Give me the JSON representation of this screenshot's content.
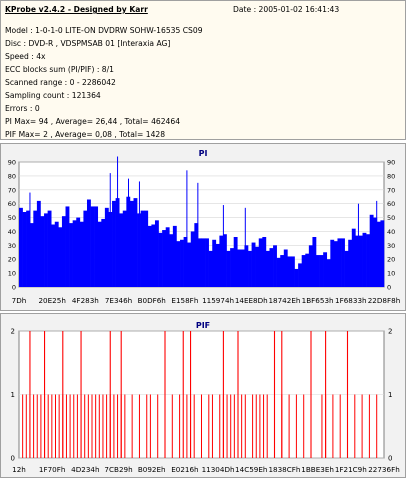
{
  "header": {
    "title": "KProbe v2.4.2 - Designed by Karr",
    "date": "Date : 2005-01-02 16:41:43",
    "lines": [
      "Model : 1-0-1-0 LITE-ON DVDRW SOHW-16535 CS09",
      "Disc : DVD-R , VDSPMSAB 01 [Interaxia AG]",
      "Speed : 4x",
      "ECC blocks sum (PI/PIF) : 8/1",
      "Scanned range : 0 - 2286042",
      "Sampling count : 121364",
      "Errors : 0",
      "PI Max= 94 , Average= 26,44 , Total= 462464",
      "PIF Max= 2 , Average= 0,08 , Total= 1428"
    ]
  },
  "chart_data": [
    {
      "type": "area",
      "title": "PI",
      "color": "#0000ff",
      "ylim": [
        0,
        90
      ],
      "yticks": [
        0,
        10,
        20,
        30,
        40,
        50,
        60,
        70,
        80,
        90
      ],
      "xticklabels": [
        "7Dh",
        "20E25h",
        "4F283h",
        "7E346h",
        "B0DF6h",
        "E158Fh",
        "115974h",
        "14EE8Dh",
        "18742Eh",
        "1BF653h",
        "1F6833h",
        "22D8F8h"
      ],
      "series": [
        {
          "values": [
            62,
            55,
            52,
            50,
            55,
            58,
            54,
            52,
            50,
            47,
            45,
            48,
            52,
            55,
            50,
            48,
            46,
            50,
            54,
            58,
            60,
            56,
            52,
            50,
            54,
            58,
            62,
            60,
            56,
            54,
            60,
            64,
            62,
            58,
            56,
            52,
            48,
            45,
            44,
            42,
            40,
            38,
            40,
            42,
            38,
            35,
            33,
            36,
            40,
            42,
            38,
            34,
            30,
            28,
            32,
            36,
            38,
            35,
            30,
            28,
            32,
            30,
            26,
            25,
            28,
            30,
            34,
            36,
            33,
            30,
            28,
            26,
            24,
            22,
            22,
            24,
            20,
            18,
            18,
            20,
            28,
            30,
            32,
            26,
            22,
            20,
            22,
            32,
            38,
            36,
            32,
            30,
            34,
            38,
            40,
            36,
            34,
            40,
            50,
            55,
            48,
            45
          ],
          "spikes": [
            {
              "x": 0.03,
              "v": 68
            },
            {
              "x": 0.25,
              "v": 82
            },
            {
              "x": 0.27,
              "v": 94
            },
            {
              "x": 0.3,
              "v": 78
            },
            {
              "x": 0.33,
              "v": 76
            },
            {
              "x": 0.46,
              "v": 84
            },
            {
              "x": 0.49,
              "v": 75
            },
            {
              "x": 0.56,
              "v": 59
            },
            {
              "x": 0.62,
              "v": 57
            },
            {
              "x": 0.93,
              "v": 60
            },
            {
              "x": 0.98,
              "v": 62
            }
          ]
        }
      ]
    },
    {
      "type": "bar",
      "title": "PIF",
      "color": "#ff0000",
      "ylim": [
        0,
        2
      ],
      "yticks": [
        0,
        1,
        2
      ],
      "xticklabels": [
        "12h",
        "1F70Fh",
        "4D234h",
        "7CB29h",
        "B092Eh",
        "E0216h",
        "11304Dh",
        "14C59Eh",
        "1838CFh",
        "1BBE3Eh",
        "1F21C9h",
        "22736Fh"
      ],
      "series": [
        {
          "ones": [
            0.01,
            0.02,
            0.03,
            0.04,
            0.05,
            0.06,
            0.07,
            0.08,
            0.09,
            0.1,
            0.11,
            0.12,
            0.13,
            0.14,
            0.15,
            0.16,
            0.17,
            0.18,
            0.19,
            0.2,
            0.21,
            0.22,
            0.23,
            0.24,
            0.25,
            0.26,
            0.27,
            0.28,
            0.29,
            0.31,
            0.33,
            0.35,
            0.36,
            0.38,
            0.4,
            0.42,
            0.44,
            0.46,
            0.47,
            0.48,
            0.5,
            0.52,
            0.53,
            0.55,
            0.56,
            0.57,
            0.58,
            0.59,
            0.6,
            0.61,
            0.62,
            0.64,
            0.65,
            0.66,
            0.67,
            0.68,
            0.7,
            0.72,
            0.74,
            0.76,
            0.78,
            0.8,
            0.83,
            0.84,
            0.86,
            0.88,
            0.9,
            0.92,
            0.94,
            0.96,
            0.98
          ],
          "twos": [
            0.03,
            0.07,
            0.12,
            0.17,
            0.25,
            0.28,
            0.4,
            0.45,
            0.47,
            0.56,
            0.6,
            0.7,
            0.72,
            0.8,
            0.84,
            0.9
          ]
        }
      ]
    }
  ]
}
